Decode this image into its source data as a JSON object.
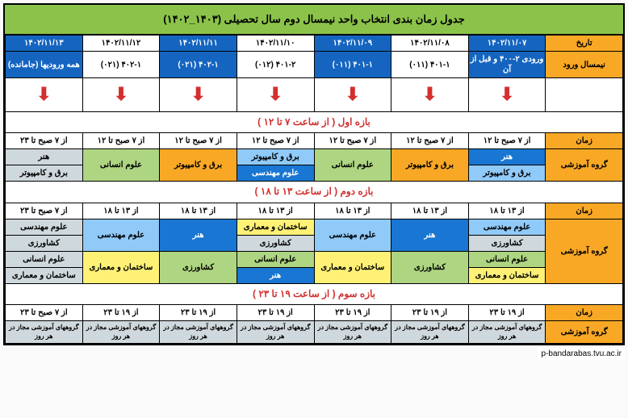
{
  "title": "جدول زمان بندی انتخاب واحد نیمسال دوم سال تحصیلی (۱۴۰۳_۱۴۰۲)",
  "headers": {
    "date": "تاریخ",
    "entry": "نیمسال ورود",
    "time": "زمان",
    "group": "گروه آموزشی"
  },
  "dates": [
    "۱۴۰۲/۱۱/۰۷",
    "۱۴۰۲/۱۱/۰۸",
    "۱۴۰۲/۱۱/۰۹",
    "۱۴۰۲/۱۱/۱۰",
    "۱۴۰۲/۱۱/۱۱",
    "۱۴۰۲/۱۱/۱۲",
    "۱۴۰۲/۱۱/۱۳"
  ],
  "entries": [
    "ورودی ۲-۴۰۰ و قبل از آن",
    "۴۰۱-۱ (۰۱۱)",
    "۴۰۱-۱ (۰۱۱)",
    "۴۰۱-۲ (۰۱۲)",
    "۴۰۲-۱ (۰۲۱)",
    "۴۰۲-۱ (۰۲۱)",
    "همه ورودیها (جامانده)"
  ],
  "arrow": "⬇",
  "section1": {
    "head": "بازه اول ( از ساعت ۷ تا ۱۲ )",
    "times": [
      "از ۷ صبح تا ۱۲",
      "از ۷ صبح تا ۱۲",
      "از ۷ صبح تا ۱۲",
      "از ۷ صبح تا ۱۲",
      "از ۷ صبح تا ۱۲",
      "از ۷ صبح تا ۱۲",
      "از ۷ صبح تا ۲۳"
    ],
    "g1": {
      "a": "هنر",
      "b": "برق و کامپیوتر"
    },
    "g2": "برق و کامپیوتر",
    "g3": "علوم انسانی",
    "g4": {
      "a": "برق و کامپیوتر",
      "b": "علوم مهندسی"
    },
    "g5": "برق و کامپیوتر",
    "g6": "علوم انسانی",
    "g7": {
      "a": "هنر",
      "b": "برق و کامپیوتر"
    }
  },
  "section2": {
    "head": "بازه دوم ( از ساعت ۱۳ تا ۱۸ )",
    "times": [
      "از ۱۳ تا ۱۸",
      "از ۱۳ تا ۱۸",
      "از ۱۳ تا ۱۸",
      "از ۱۳ تا ۱۸",
      "از ۱۳ تا ۱۸",
      "از ۱۳ تا ۱۸",
      "از ۷ صبح تا ۲۳"
    ],
    "g1": {
      "a": "علوم مهندسی",
      "b": "کشاورزی",
      "c": "علوم انسانی",
      "d": "ساختمان و معماری"
    },
    "g2": "هنر",
    "g3": "کشاورزی",
    "g4a": "علوم مهندسی",
    "g4b": "ساختمان و معماری",
    "g5a": {
      "a": "ساختمان و معماری",
      "b": "کشاورزی"
    },
    "g5b": {
      "a": "علوم انسانی",
      "b": "هنر"
    },
    "g6": "هنر",
    "g6b": "کشاورزی",
    "g7": "علوم مهندسی",
    "g7b": "ساختمان و معماری",
    "g8": {
      "a": "علوم مهندسی",
      "b": "کشاورزی",
      "c": "علوم انسانی",
      "d": "ساختمان و معماری"
    }
  },
  "section3": {
    "head": "بازه سوم ( از ساعت ۱۹ تا ۲۳ )",
    "times": [
      "از ۱۹ تا ۲۳",
      "از ۱۹ تا ۲۳",
      "از ۱۹ تا ۲۳",
      "از ۱۹ تا ۲۳",
      "از ۱۹ تا ۲۳",
      "از ۱۹ تا ۲۳",
      "از ۷ صبح تا ۲۳"
    ],
    "groups": "گروههای آموزشی مجاز در هر روز"
  },
  "watermark": "p-bandarabas.tvu.ac.ir"
}
